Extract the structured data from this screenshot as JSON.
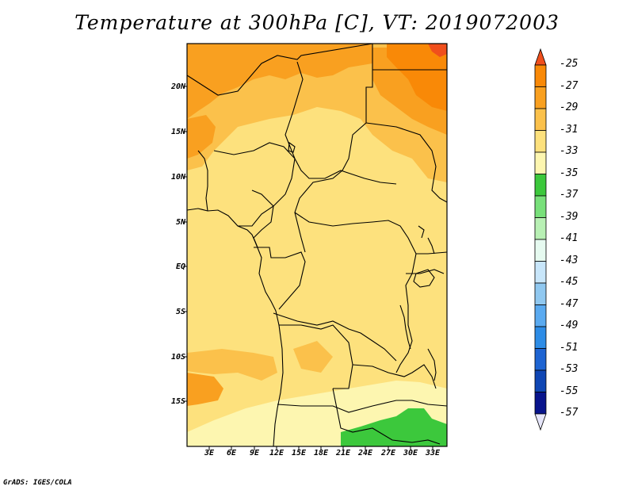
{
  "title": "Temperature at 300hPa [C], VT: 2019072003",
  "credit": "GrADS: IGES/COLA",
  "map": {
    "lat_labels": [
      "20N",
      "15N",
      "10N",
      "5N",
      "EQ",
      "5S",
      "10S",
      "15S"
    ],
    "lon_labels": [
      "3E",
      "6E",
      "9E",
      "12E",
      "15E",
      "18E",
      "21E",
      "24E",
      "27E",
      "30E",
      "33E"
    ]
  },
  "colorbar": {
    "labels": [
      "-25",
      "-27",
      "-29",
      "-31",
      "-33",
      "-35",
      "-37",
      "-39",
      "-41",
      "-43",
      "-45",
      "-47",
      "-49",
      "-51",
      "-53",
      "-55",
      "-57"
    ],
    "colors": [
      "#f04f1c",
      "#f98907",
      "#f9a020",
      "#fbc14b",
      "#fde17d",
      "#fdf6b0",
      "#3cc83c",
      "#78e07a",
      "#b8f0b4",
      "#e6faf0",
      "#c8e6fa",
      "#90c8f0",
      "#5aaaf0",
      "#2d8ce6",
      "#1e64d2",
      "#0f46b4",
      "#08148c",
      "#e6e6fa"
    ]
  },
  "colors": {
    "field_base": "#fde17d",
    "field_warm": "#fbc14b",
    "field_warmer": "#f9a020",
    "field_warmest": "#f98907",
    "field_hot": "#f04f1c",
    "field_cool": "#fdf6b0",
    "field_green": "#3cc83c"
  }
}
